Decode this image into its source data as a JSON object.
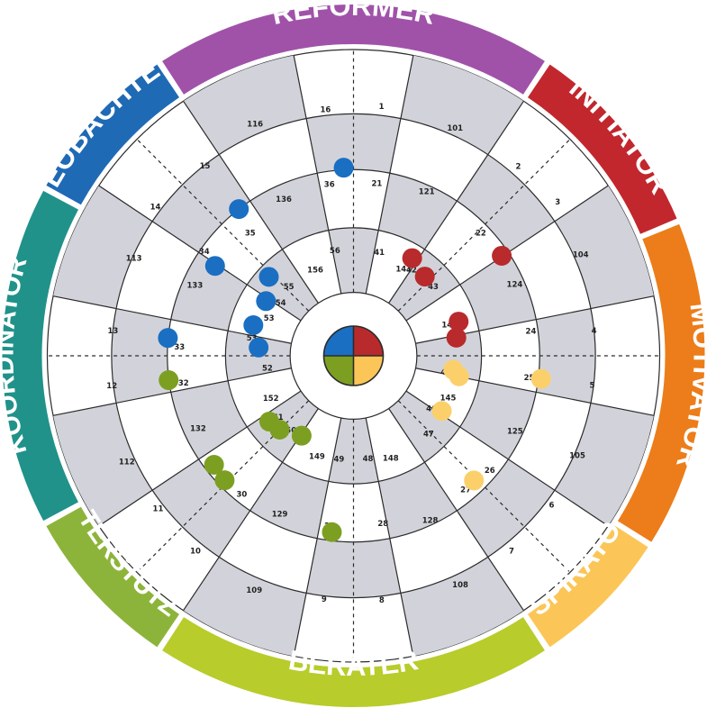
{
  "colors": {
    "reformer": "#a052a9",
    "initiator": "#c1272d",
    "motivator": "#ec7d1a",
    "inspirator": "#fbc657",
    "berater": "#b8cc2b",
    "unterstuetzer": "#8db43a",
    "koordinator": "#20928a",
    "beobachter": "#1f6ab5",
    "dot_blue": "#1a6fc2",
    "dot_red": "#b82a2c",
    "dot_yellow": "#fbd06b",
    "dot_green": "#7c9f22",
    "gray_cell": "#d2d3da",
    "line": "#2b2b2b"
  },
  "segments": [
    {
      "key": "reformer",
      "label": "REFORMER",
      "start": -33,
      "end": 33,
      "color": "#a052a9"
    },
    {
      "key": "initiator",
      "label": "INITIATOR",
      "start": 34,
      "end": 67,
      "color": "#c1272d"
    },
    {
      "key": "motivator",
      "label": "MOTIVATOR",
      "start": 68,
      "end": 122,
      "color": "#ec7d1a"
    },
    {
      "key": "inspirator",
      "label": "INSPIRATOR",
      "start": 123,
      "end": 146,
      "color": "#fbc657"
    },
    {
      "key": "berater",
      "label": "BERATER",
      "start": 147,
      "end": 213,
      "color": "#b8cc2b"
    },
    {
      "key": "unterstuetzer",
      "label": "UNTERSTÜTZER",
      "start": 214,
      "end": 241,
      "color": "#8db43a"
    },
    {
      "key": "koordinator",
      "label": "KOORDINATOR",
      "start": 242,
      "end": 298,
      "color": "#20928a"
    },
    {
      "key": "beobachter",
      "label": "BEOBACHTER",
      "start": 299,
      "end": 326,
      "color": "#1f6ab5"
    }
  ],
  "numbers": [
    {
      "text": "1",
      "a": 6.4,
      "r": 0.82
    },
    {
      "text": "2",
      "a": 41.0,
      "r": 0.82
    },
    {
      "text": "3",
      "a": 53.0,
      "r": 0.835
    },
    {
      "text": "4",
      "a": 84.0,
      "r": 0.79
    },
    {
      "text": "5",
      "a": 97.0,
      "r": 0.785
    },
    {
      "text": "6",
      "a": 127.0,
      "r": 0.81
    },
    {
      "text": "7",
      "a": 141.0,
      "r": 0.82
    },
    {
      "text": "8",
      "a": 173.4,
      "r": 0.802
    },
    {
      "text": "9",
      "a": 186.9,
      "r": 0.8
    },
    {
      "text": "10",
      "a": 219.0,
      "r": 0.82
    },
    {
      "text": "11",
      "a": 232.0,
      "r": 0.81
    },
    {
      "text": "12",
      "a": 263.0,
      "r": 0.795
    },
    {
      "text": "13",
      "a": 276.0,
      "r": 0.79
    },
    {
      "text": "14",
      "a": 307.0,
      "r": 0.81
    },
    {
      "text": "15",
      "a": 322.0,
      "r": 0.788
    },
    {
      "text": "16",
      "a": 353.5,
      "r": 0.809
    },
    {
      "text": "101",
      "a": 24.0,
      "r": 0.815
    },
    {
      "text": "104",
      "a": 66.0,
      "r": 0.812
    },
    {
      "text": "105",
      "a": 114.0,
      "r": 0.8
    },
    {
      "text": "108",
      "a": 155.0,
      "r": 0.825
    },
    {
      "text": "109",
      "a": 203.0,
      "r": 0.83
    },
    {
      "text": "112",
      "a": 245.0,
      "r": 0.817
    },
    {
      "text": "113",
      "a": 294.0,
      "r": 0.785
    },
    {
      "text": "116",
      "a": 337.0,
      "r": 0.823
    },
    {
      "text": "21",
      "a": 7.7,
      "r": 0.569
    },
    {
      "text": "22",
      "a": 46.0,
      "r": 0.578
    },
    {
      "text": "23",
      "a": 56.0,
      "r": 0.595
    },
    {
      "text": "24",
      "a": 82.0,
      "r": 0.585
    },
    {
      "text": "25",
      "a": 97.0,
      "r": 0.578
    },
    {
      "text": "26",
      "a": 130.0,
      "r": 0.581
    },
    {
      "text": "27",
      "a": 140.0,
      "r": 0.57
    },
    {
      "text": "28",
      "a": 170.0,
      "r": 0.555
    },
    {
      "text": "29",
      "a": 188.0,
      "r": 0.56
    },
    {
      "text": "30",
      "a": 219.0,
      "r": 0.58
    },
    {
      "text": "31",
      "a": 233.0,
      "r": 0.58
    },
    {
      "text": "32",
      "a": 261.0,
      "r": 0.562
    },
    {
      "text": "33",
      "a": 273.0,
      "r": 0.569
    },
    {
      "text": "34",
      "a": 305.0,
      "r": 0.595
    },
    {
      "text": "35",
      "a": 320.0,
      "r": 0.525
    },
    {
      "text": "36",
      "a": 352.0,
      "r": 0.566
    },
    {
      "text": "121",
      "a": 24.0,
      "r": 0.587
    },
    {
      "text": "124",
      "a": 66.0,
      "r": 0.576
    },
    {
      "text": "125",
      "a": 115.0,
      "r": 0.582
    },
    {
      "text": "128",
      "a": 155.0,
      "r": 0.592
    },
    {
      "text": "129",
      "a": 205.0,
      "r": 0.57
    },
    {
      "text": "132",
      "a": 245.0,
      "r": 0.56
    },
    {
      "text": "133",
      "a": 294.0,
      "r": 0.567
    },
    {
      "text": "136",
      "a": 336.0,
      "r": 0.56
    },
    {
      "text": "41",
      "a": 14.0,
      "r": 0.348
    },
    {
      "text": "42",
      "a": 34.0,
      "r": 0.339
    },
    {
      "text": "43",
      "a": 49.0,
      "r": 0.345
    },
    {
      "text": "44",
      "a": 81.0,
      "r": 0.355
    },
    {
      "text": "45",
      "a": 100.0,
      "r": 0.307
    },
    {
      "text": "46",
      "a": 124.0,
      "r": 0.307
    },
    {
      "text": "47",
      "a": 136.0,
      "r": 0.353
    },
    {
      "text": "48",
      "a": 172.0,
      "r": 0.338
    },
    {
      "text": "49",
      "a": 188.0,
      "r": 0.34
    },
    {
      "text": "50",
      "a": 220.0,
      "r": 0.317
    },
    {
      "text": "51",
      "a": 231.0,
      "r": 0.317
    },
    {
      "text": "52",
      "a": 262.0,
      "r": 0.284
    },
    {
      "text": "53",
      "a": 280.0,
      "r": 0.337
    },
    {
      "text": "53",
      "a": 294.0,
      "r": 0.302
    },
    {
      "text": "54",
      "a": 306.0,
      "r": 0.294
    },
    {
      "text": "55",
      "a": 317.0,
      "r": 0.31
    },
    {
      "text": "56",
      "a": 350.0,
      "r": 0.35
    },
    {
      "text": "141",
      "a": 30.0,
      "r": 0.328
    },
    {
      "text": "144",
      "a": 72.0,
      "r": 0.33
    },
    {
      "text": "145",
      "a": 114.0,
      "r": 0.338
    },
    {
      "text": "148",
      "a": 160.0,
      "r": 0.355
    },
    {
      "text": "149",
      "a": 200.0,
      "r": 0.349
    },
    {
      "text": "152",
      "a": 243.0,
      "r": 0.303
    },
    {
      "text": "156",
      "a": 336.0,
      "r": 0.307
    }
  ],
  "dots": [
    {
      "color": "dot_blue",
      "a": 357.0,
      "r": 0.615
    },
    {
      "color": "dot_blue",
      "a": 322.0,
      "r": 0.608
    },
    {
      "color": "dot_blue",
      "a": 303.0,
      "r": 0.539
    },
    {
      "color": "dot_blue",
      "a": 313.0,
      "r": 0.378
    },
    {
      "color": "dot_blue",
      "a": 302.0,
      "r": 0.337
    },
    {
      "color": "dot_blue",
      "a": 287.0,
      "r": 0.342
    },
    {
      "color": "dot_blue",
      "a": 275.0,
      "r": 0.311
    },
    {
      "color": "dot_blue",
      "a": 275.5,
      "r": 0.609
    },
    {
      "color": "dot_red",
      "a": 31.0,
      "r": 0.372
    },
    {
      "color": "dot_red",
      "a": 42.0,
      "r": 0.348
    },
    {
      "color": "dot_red",
      "a": 56.0,
      "r": 0.584
    },
    {
      "color": "dot_red",
      "a": 72.0,
      "r": 0.361
    },
    {
      "color": "dot_red",
      "a": 80.0,
      "r": 0.341
    },
    {
      "color": "dot_yellow",
      "a": 98.0,
      "r": 0.329
    },
    {
      "color": "dot_yellow",
      "a": 101.0,
      "r": 0.351
    },
    {
      "color": "dot_yellow",
      "a": 97.0,
      "r": 0.617
    },
    {
      "color": "dot_yellow",
      "a": 122.0,
      "r": 0.34
    },
    {
      "color": "dot_yellow",
      "a": 136.0,
      "r": 0.566
    },
    {
      "color": "dot_green",
      "a": 187.0,
      "r": 0.58
    },
    {
      "color": "dot_green",
      "a": 226.0,
      "r": 0.585
    },
    {
      "color": "dot_green",
      "a": 232.0,
      "r": 0.578
    },
    {
      "color": "dot_green",
      "a": 232.0,
      "r": 0.349
    },
    {
      "color": "dot_green",
      "a": 225.0,
      "r": 0.341
    },
    {
      "color": "dot_green",
      "a": 213.0,
      "r": 0.311
    },
    {
      "color": "dot_green",
      "a": 262.5,
      "r": 0.609
    }
  ]
}
